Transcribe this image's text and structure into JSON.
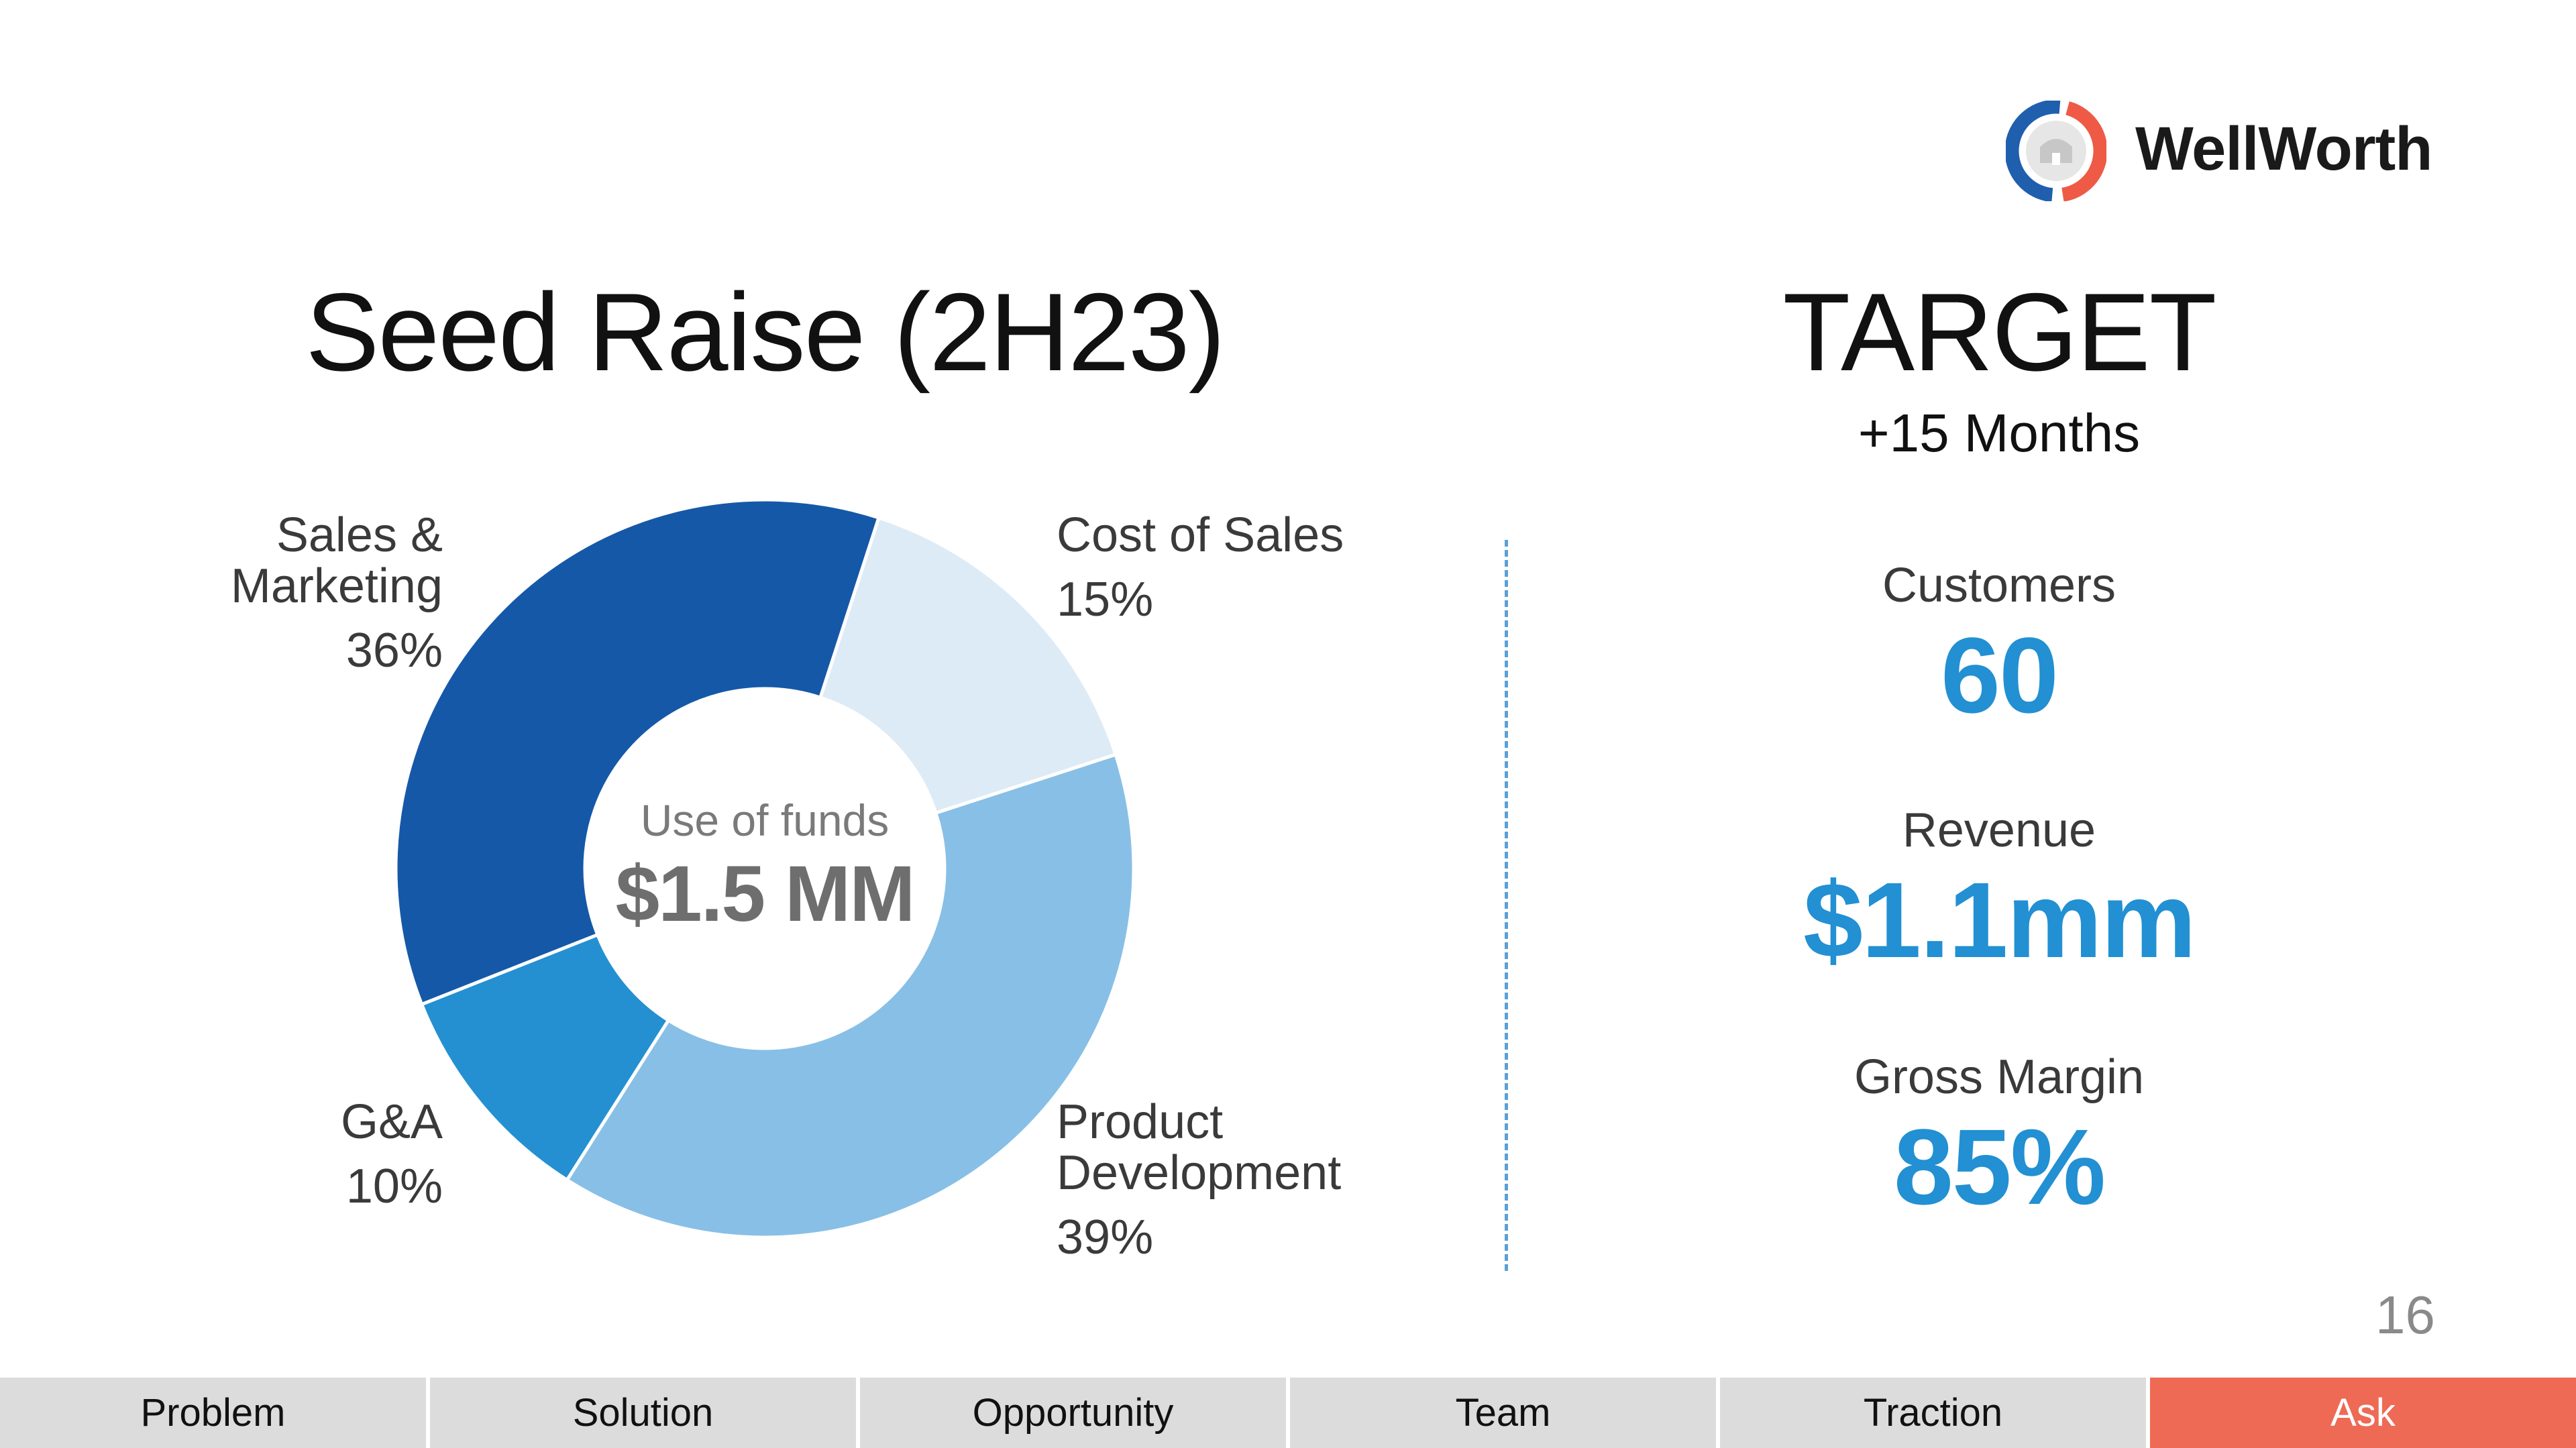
{
  "brand": {
    "name": "WellWorth",
    "logo_icon": "wellworth-logo-icon",
    "logo_colors": [
      "#1f5fae",
      "#ee5a45"
    ]
  },
  "slide": {
    "title": "Seed Raise (2H23)",
    "page_number": "16"
  },
  "chart_data": {
    "type": "pie",
    "donut": true,
    "center_title": "Use of funds",
    "center_value": "$1.5 MM",
    "slices": [
      {
        "label_lines": [
          "Cost of Sales"
        ],
        "pct_label": "15%",
        "value": 15,
        "color": "#ddebf6"
      },
      {
        "label_lines": [
          "Product",
          "Development"
        ],
        "pct_label": "39%",
        "value": 39,
        "color": "#88bfe6"
      },
      {
        "label_lines": [
          "G&A"
        ],
        "pct_label": "10%",
        "value": 10,
        "color": "#2490d1"
      },
      {
        "label_lines": [
          "Sales &",
          "Marketing"
        ],
        "pct_label": "36%",
        "value": 36,
        "color": "#1558a8"
      }
    ]
  },
  "target": {
    "title": "TARGET",
    "subtitle": "+15 Months",
    "metrics": [
      {
        "label": "Customers",
        "value": "60"
      },
      {
        "label": "Revenue",
        "value": "$1.1mm"
      },
      {
        "label": "Gross Margin",
        "value": "85%"
      }
    ]
  },
  "nav": {
    "tabs": [
      {
        "label": "Problem",
        "active": false
      },
      {
        "label": "Solution",
        "active": false
      },
      {
        "label": "Opportunity",
        "active": false
      },
      {
        "label": "Team",
        "active": false
      },
      {
        "label": "Traction",
        "active": false
      },
      {
        "label": "Ask",
        "active": true
      }
    ]
  }
}
